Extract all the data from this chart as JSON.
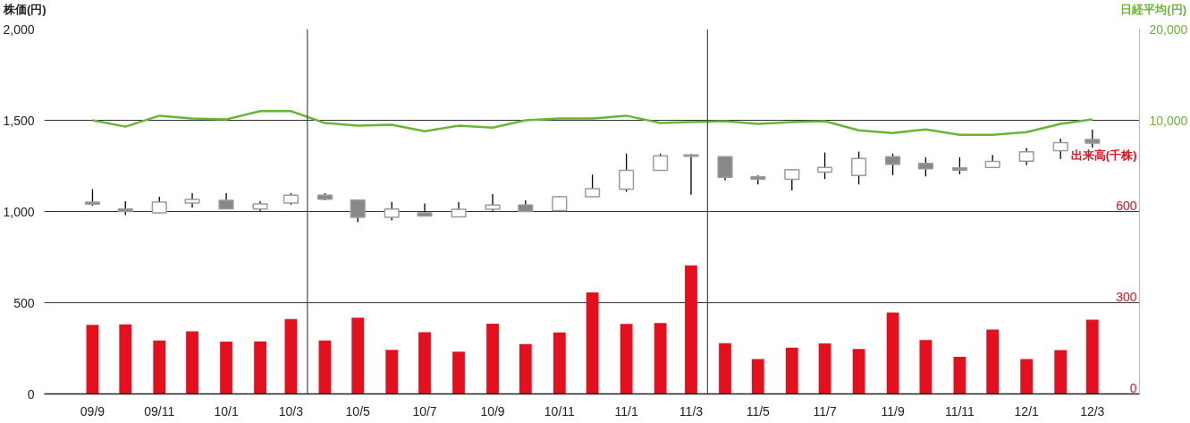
{
  "chart_data": {
    "type": "candlestick",
    "ylabel": "株価(円)",
    "y2label": "日経平均(円)",
    "y3label": "出来高(千株)",
    "x": [
      "2009-09",
      "2009-10",
      "2009-11",
      "2009-12",
      "2010-01",
      "2010-02",
      "2010-03",
      "2010-04",
      "2010-05",
      "2010-06",
      "2010-07",
      "2010-08",
      "2010-09",
      "2010-10",
      "2010-11",
      "2010-12",
      "2011-01",
      "2011-02",
      "2011-03",
      "2011-04",
      "2011-05",
      "2011-06",
      "2011-07",
      "2011-08",
      "2011-09",
      "2011-10",
      "2011-11",
      "2011-12",
      "2012-01",
      "2012-02",
      "2012-03"
    ],
    "xlim": [
      "2009-07-19",
      "2012-04-13"
    ],
    "xticks": [
      {
        "value": "2009-09",
        "label": "09/9"
      },
      {
        "value": "2009-11",
        "label": "09/11"
      },
      {
        "value": "2010-01",
        "label": "10/1"
      },
      {
        "value": "2010-03",
        "label": "10/3"
      },
      {
        "value": "2010-05",
        "label": "10/5"
      },
      {
        "value": "2010-07",
        "label": "10/7"
      },
      {
        "value": "2010-09",
        "label": "10/9"
      },
      {
        "value": "2010-11",
        "label": "10/11"
      },
      {
        "value": "2011-01",
        "label": "11/1"
      },
      {
        "value": "2011-03",
        "label": "11/3"
      },
      {
        "value": "2011-05",
        "label": "11/5"
      },
      {
        "value": "2011-07",
        "label": "11/7"
      },
      {
        "value": "2011-09",
        "label": "11/9"
      },
      {
        "value": "2011-11",
        "label": "11/11"
      },
      {
        "value": "2012-01",
        "label": "12/1"
      },
      {
        "value": "2012-03",
        "label": "12/3"
      }
    ],
    "ohlc": [
      [
        1052,
        1123,
        1032,
        1040
      ],
      [
        1014,
        1056,
        981,
        1000
      ],
      [
        993,
        1081,
        990,
        1052
      ],
      [
        1047,
        1101,
        1022,
        1066
      ],
      [
        1061,
        1101,
        1015,
        1015
      ],
      [
        1014,
        1056,
        1002,
        1042
      ],
      [
        1047,
        1101,
        1037,
        1089
      ],
      [
        1089,
        1101,
        1061,
        1067
      ],
      [
        1062,
        1062,
        941,
        968
      ],
      [
        968,
        1051,
        951,
        1014
      ],
      [
        993,
        1044,
        973,
        976
      ],
      [
        971,
        1051,
        971,
        1012
      ],
      [
        1012,
        1096,
        1002,
        1035
      ],
      [
        1035,
        1061,
        997,
        1000
      ],
      [
        1005,
        1086,
        1005,
        1081
      ],
      [
        1081,
        1202,
        1081,
        1125
      ],
      [
        1123,
        1318,
        1108,
        1226
      ],
      [
        1226,
        1318,
        1226,
        1305
      ],
      [
        1310,
        1315,
        1092,
        1303
      ],
      [
        1300,
        1303,
        1170,
        1188
      ],
      [
        1190,
        1198,
        1148,
        1178
      ],
      [
        1177,
        1229,
        1115,
        1229
      ],
      [
        1216,
        1323,
        1178,
        1242
      ],
      [
        1197,
        1328,
        1148,
        1291
      ],
      [
        1300,
        1318,
        1198,
        1259
      ],
      [
        1263,
        1298,
        1193,
        1234
      ],
      [
        1239,
        1298,
        1203,
        1227
      ],
      [
        1241,
        1310,
        1239,
        1274
      ],
      [
        1276,
        1348,
        1254,
        1327
      ],
      [
        1333,
        1399,
        1288,
        1377
      ],
      [
        1395,
        1449,
        1350,
        1375
      ]
    ],
    "series": [
      {
        "type": "line",
        "axis": "y2",
        "color": "#6ab534",
        "values": [
          10000,
          9300,
          10500,
          10200,
          10100,
          11000,
          11000,
          9700,
          9400,
          9500,
          8800,
          9400,
          9200,
          10000,
          10200,
          10200,
          10500,
          9700,
          9800,
          9900,
          9600,
          9800,
          9900,
          8900,
          8600,
          9000,
          8400,
          8400,
          8700,
          9600,
          10100
        ]
      },
      {
        "type": "bar",
        "axis": "y3",
        "color": "#e60f1e",
        "values": [
          227,
          229,
          176,
          206,
          172,
          173,
          246,
          176,
          251,
          145,
          203,
          139,
          231,
          164,
          202,
          334,
          230,
          233,
          423,
          167,
          115,
          152,
          166,
          148,
          268,
          177,
          122,
          212,
          115,
          144,
          244
        ]
      }
    ],
    "ylim": [
      0,
      2000
    ],
    "yticks": [
      0,
      500,
      {
        "value": 1000,
        "label": "1,000"
      },
      {
        "value": 1500,
        "label": "1,500"
      },
      {
        "value": 2000,
        "label": "2,000"
      }
    ],
    "y2lim": [
      -20000,
      20000
    ],
    "y2ticks": [
      {
        "value": 10000,
        "label": "10,000"
      },
      {
        "value": 20000,
        "label": "20,000"
      }
    ],
    "y3lim": [
      0,
      1200
    ],
    "y3ticks": [
      0,
      300,
      600
    ],
    "grid": "y",
    "ref_lines": [
      {
        "axis": "x",
        "value": "2010-03-16",
        "color": "#4a4a4a"
      },
      {
        "axis": "x",
        "value": "2011-03-16",
        "color": "#4a4a4a"
      }
    ]
  }
}
